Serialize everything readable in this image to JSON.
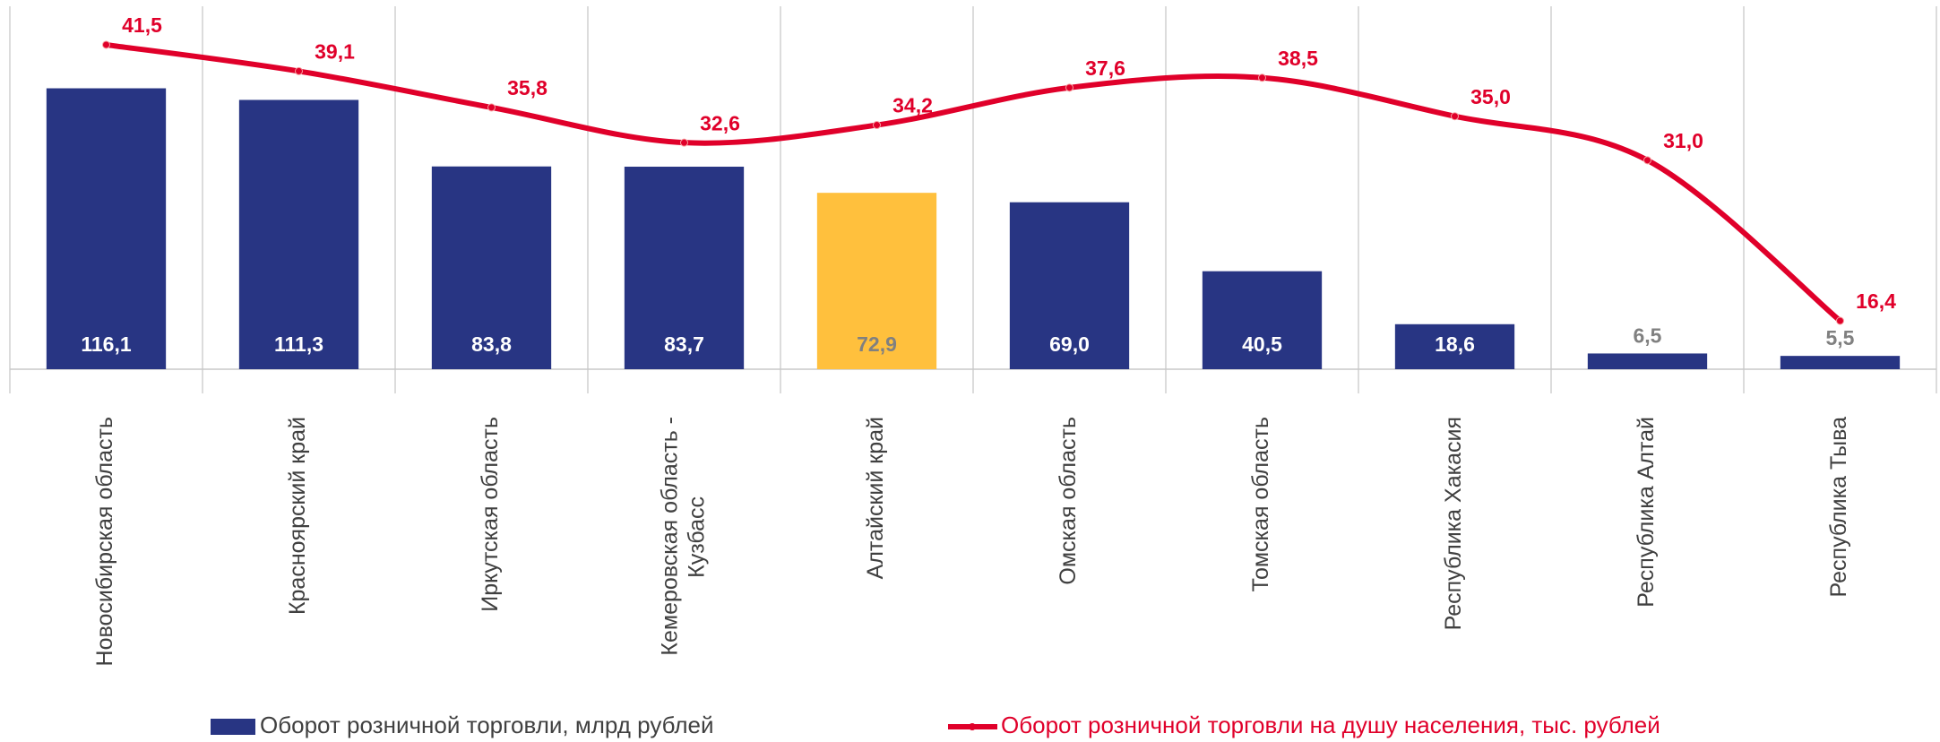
{
  "chart_data": {
    "type": "bar+line",
    "categories": [
      "Новосибирская область",
      "Красноярский край",
      "Иркутская область",
      "Кемеровская область - Кузбасс",
      "Алтайский край",
      "Омская область",
      "Томская область",
      "Республика Хакасия",
      "Республика Алтай",
      "Республика Тыва"
    ],
    "series": [
      {
        "name": "Оборот розничной торговли, млрд рублей",
        "type": "bar",
        "color": "#283583",
        "colors": [
          "#283583",
          "#283583",
          "#283583",
          "#283583",
          "#FFC03D",
          "#283583",
          "#283583",
          "#283583",
          "#283583",
          "#283583"
        ],
        "values": [
          116.1,
          111.3,
          83.8,
          83.7,
          72.9,
          69.0,
          40.5,
          18.6,
          6.5,
          5.5
        ],
        "value_labels": [
          "116,1",
          "111,3",
          "83,8",
          "83,7",
          "72,9",
          "69,0",
          "40,5",
          "18,6",
          "6,5",
          "5,5"
        ]
      },
      {
        "name": "Оборот розничной торговли на душу населения, тыс. рублей",
        "type": "line",
        "axis": "y2",
        "color": "#E0002A",
        "values": [
          41.5,
          39.1,
          35.8,
          32.6,
          34.2,
          37.6,
          38.5,
          35.0,
          31.0,
          16.4
        ],
        "value_labels": [
          "41,5",
          "39,1",
          "35,8",
          "32,6",
          "34,2",
          "37,6",
          "38,5",
          "35,0",
          "31,0",
          "16,4"
        ]
      }
    ],
    "ylim": [
      0,
      150
    ],
    "y2lim": [
      12,
      45
    ]
  }
}
